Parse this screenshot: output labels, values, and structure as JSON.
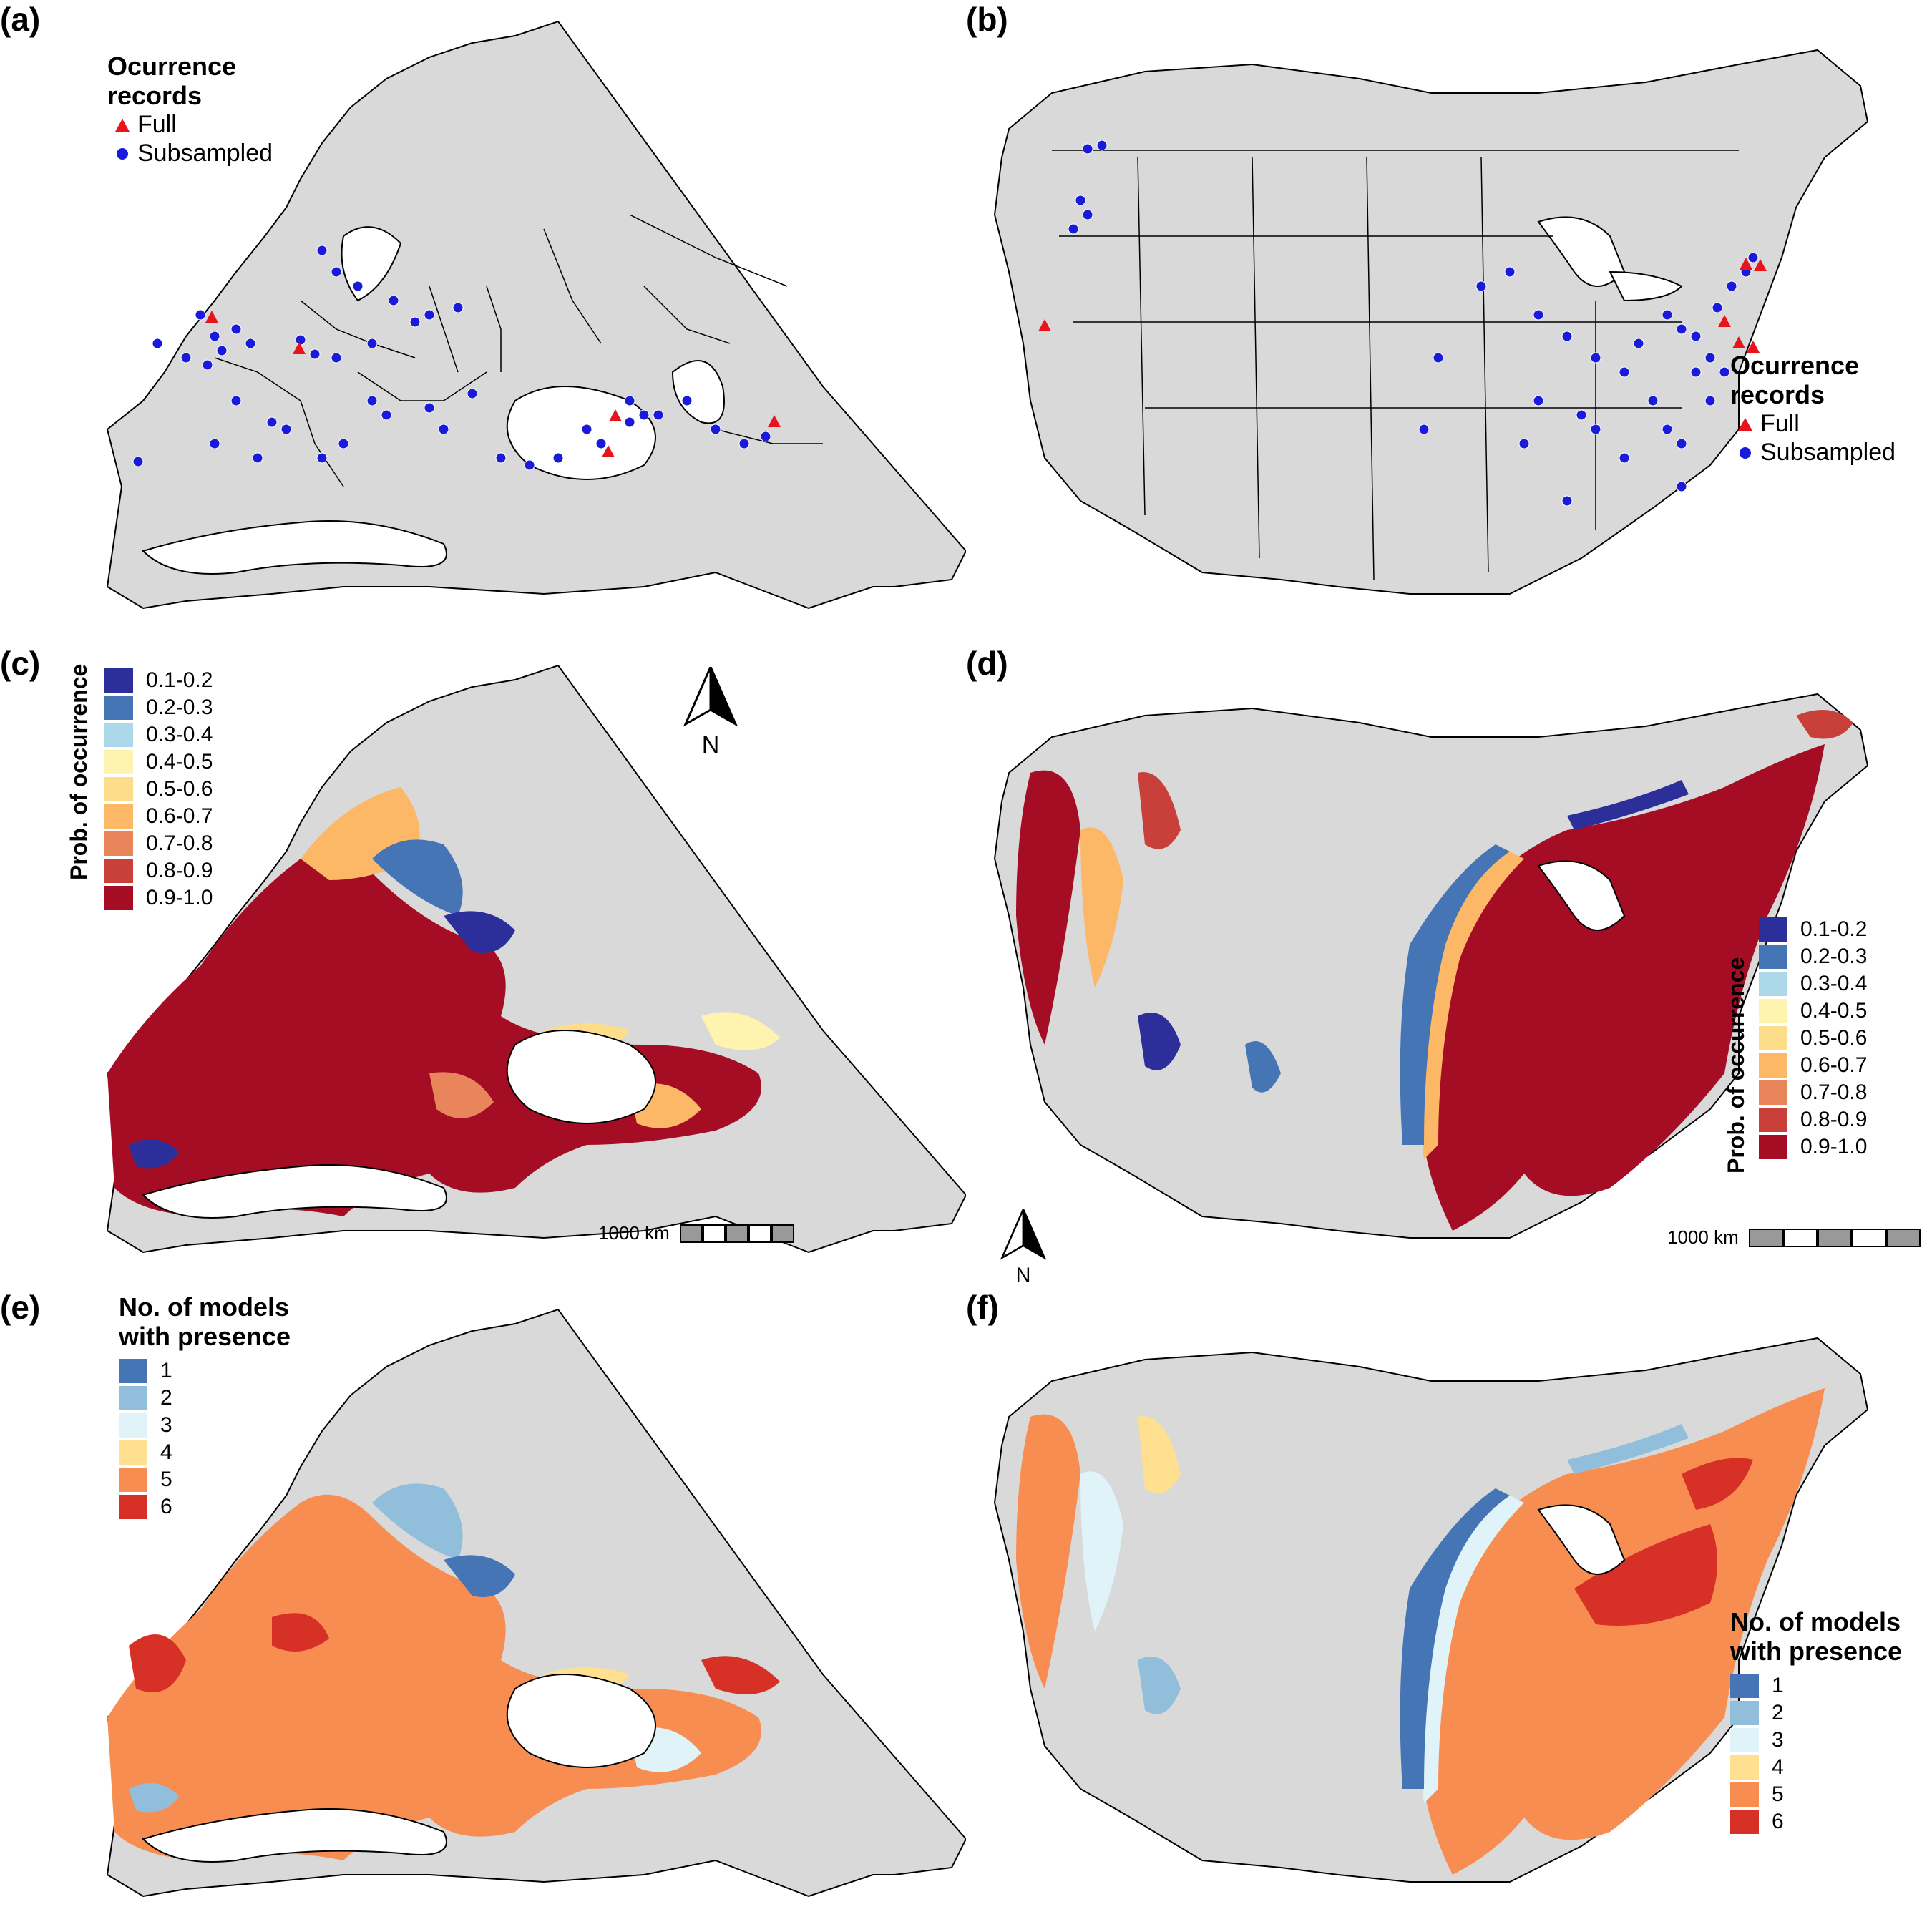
{
  "panels": {
    "a": {
      "label": "(a)"
    },
    "b": {
      "label": "(b)"
    },
    "c": {
      "label": "(c)"
    },
    "d": {
      "label": "(d)"
    },
    "e": {
      "label": "(e)"
    },
    "f": {
      "label": "(f)"
    }
  },
  "occurrence_legend": {
    "title_line1": "Ocurrence",
    "title_line2": "records",
    "full": "Full",
    "subsampled": "Subsampled"
  },
  "probability_legend": {
    "title": "Prob. of occurrence",
    "classes": [
      {
        "label": "0.1-0.2",
        "color": "#2c2f9a"
      },
      {
        "label": "0.2-0.3",
        "color": "#4575b4"
      },
      {
        "label": "0.3-0.4",
        "color": "#abd9e9"
      },
      {
        "label": "0.4-0.5",
        "color": "#fef4b0"
      },
      {
        "label": "0.5-0.6",
        "color": "#fddc8a"
      },
      {
        "label": "0.6-0.7",
        "color": "#fdb867"
      },
      {
        "label": "0.7-0.8",
        "color": "#e8855a"
      },
      {
        "label": "0.8-0.9",
        "color": "#c9403b"
      },
      {
        "label": "0.9-1.0",
        "color": "#a50d24"
      }
    ]
  },
  "models_legend": {
    "title_line1": "No. of models",
    "title_line2": "with presence",
    "classes": [
      {
        "label": "1",
        "color": "#4575b4"
      },
      {
        "label": "2",
        "color": "#91bfdb"
      },
      {
        "label": "3",
        "color": "#e0f3f8"
      },
      {
        "label": "4",
        "color": "#fee090"
      },
      {
        "label": "5",
        "color": "#f88d52"
      },
      {
        "label": "6",
        "color": "#d73027"
      }
    ]
  },
  "scale_bar": {
    "label": "1000 km"
  },
  "north_arrow": {
    "label": "N"
  },
  "colors": {
    "land": "#d9d9d9",
    "border": "#000000",
    "water": "#ffffff",
    "full_marker": "#e8141b",
    "subsampled_marker": "#1a1adb"
  }
}
